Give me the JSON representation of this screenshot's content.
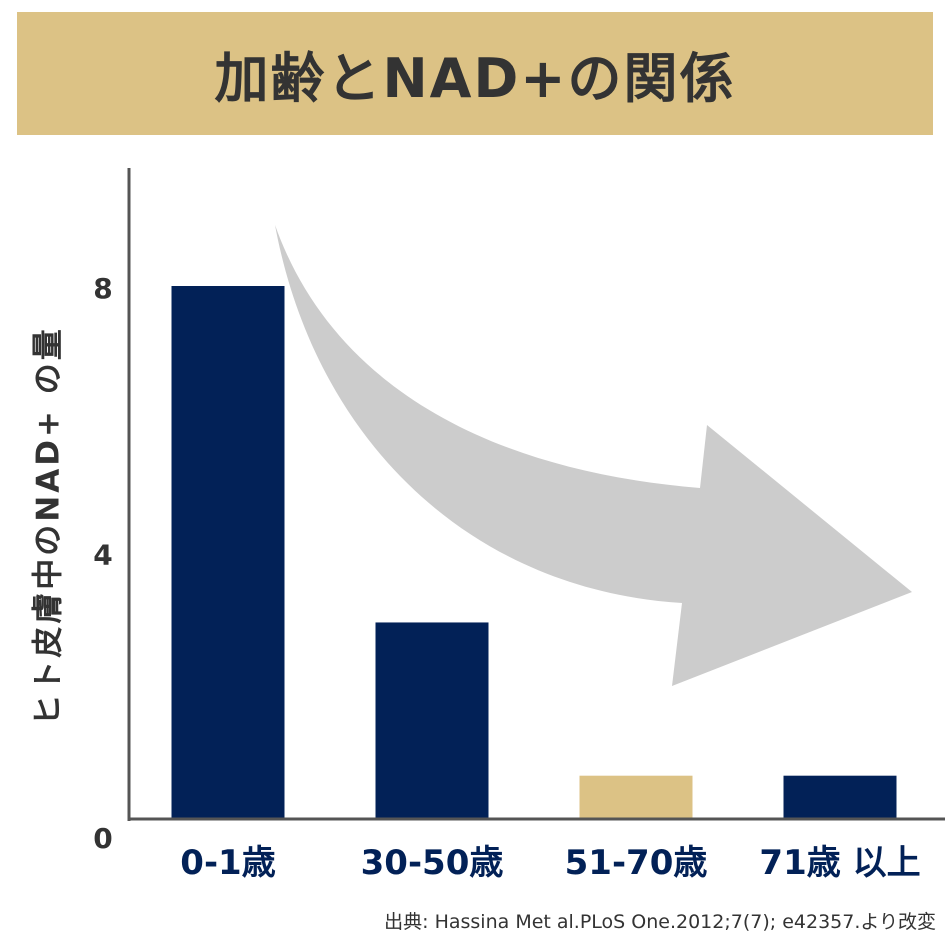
{
  "chart_data": {
    "type": "bar",
    "title": "加齢とNAD+の関係",
    "ylabel": "ヒト皮膚中のNAD+ の量",
    "xlabel": "",
    "categories": [
      "0-1歳",
      "30-50歳",
      "51-70歳",
      "71歳 以上"
    ],
    "values": [
      8.0,
      2.95,
      0.65,
      0.65
    ],
    "highlight_index": 2,
    "yticks": [
      "0",
      "4",
      "8"
    ],
    "ylim": [
      0,
      9.5
    ],
    "grid": false,
    "annotation": "downward-trend-arrow",
    "source": "出典: Hassina Met al.PLoS One.2012;7(7); e42357.より改変"
  },
  "colors": {
    "banner": "#dcc285",
    "bar": "#022157",
    "bar_highlight": "#dcc285",
    "arrow": "#cccccc",
    "axis": "#555555",
    "title_text": "#333333",
    "tick_text": "#022157"
  }
}
